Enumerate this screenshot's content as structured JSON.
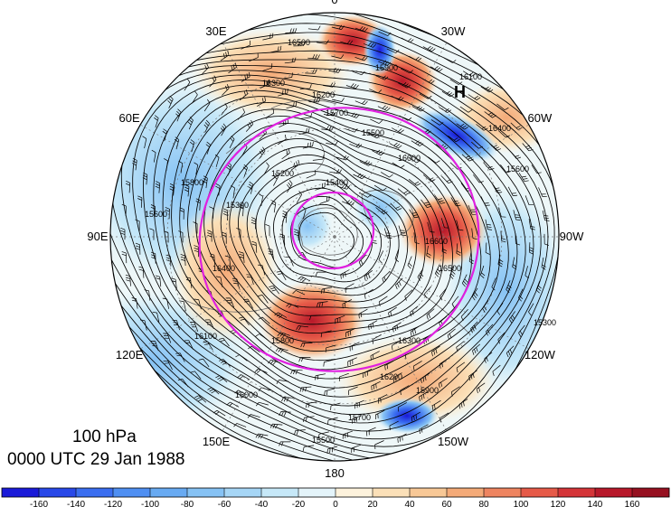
{
  "title": {
    "level": "100 hPa",
    "time": "0000 UTC 29 Jan 1988"
  },
  "map": {
    "projection": "north-polar-stereographic",
    "longitude_labels": [
      {
        "text": "0",
        "lon": 0
      },
      {
        "text": "30W",
        "lon": -30
      },
      {
        "text": "60W",
        "lon": -60
      },
      {
        "text": "90W",
        "lon": -90
      },
      {
        "text": "120W",
        "lon": -120
      },
      {
        "text": "150W",
        "lon": -150
      },
      {
        "text": "180",
        "lon": 180
      },
      {
        "text": "150E",
        "lon": 150
      },
      {
        "text": "120E",
        "lon": 120
      },
      {
        "text": "90E",
        "lon": 90
      },
      {
        "text": "60E",
        "lon": 60
      },
      {
        "text": "30E",
        "lon": 30
      }
    ],
    "high_marker": "H",
    "contour_labels": [
      "16500",
      "16300",
      "16200",
      "15900",
      "15700",
      "15500",
      "16000",
      "16100",
      "16400",
      "15800",
      "15600",
      "15300",
      "15200",
      "15400",
      "16600"
    ],
    "colors": {
      "contour": "#000000",
      "highlight_contour": "#e020e0",
      "coast": "#555555"
    }
  },
  "colorbar": {
    "ticks": [
      "-160",
      "-140",
      "-120",
      "-100",
      "-80",
      "-60",
      "-40",
      "-20",
      "0",
      "20",
      "40",
      "60",
      "80",
      "100",
      "120",
      "140",
      "160"
    ],
    "colors": [
      "#1a1ad8",
      "#2848e8",
      "#3a6ef0",
      "#4f8ff2",
      "#68aaf2",
      "#86c2f4",
      "#a6d6f6",
      "#c6e8f8",
      "#e4f4fa",
      "#fdf2dc",
      "#fbe0b8",
      "#f8c896",
      "#f4aa78",
      "#ee8460",
      "#e65a48",
      "#d43438",
      "#b8182a",
      "#961020"
    ]
  }
}
